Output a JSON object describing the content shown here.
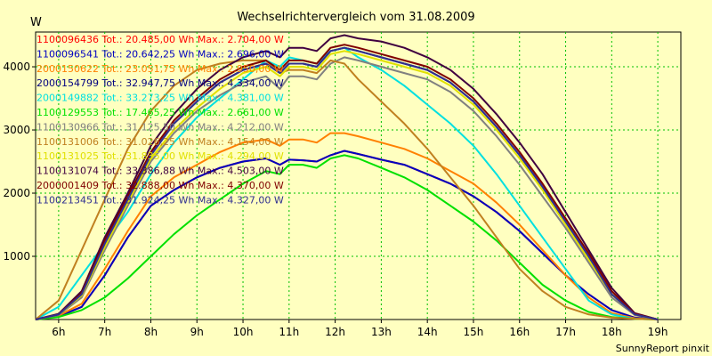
{
  "chart_data": {
    "type": "line",
    "title": "Wechselrichtervergleich vom 31.08.2009",
    "ylabel": "W",
    "xlabel": "",
    "footer": "SunnyReport pinxit",
    "x_ticks": [
      "6h",
      "7h",
      "8h",
      "9h",
      "10h",
      "11h",
      "12h",
      "13h",
      "14h",
      "15h",
      "16h",
      "17h",
      "18h",
      "19h"
    ],
    "y_ticks": [
      1000,
      2000,
      3000,
      4000
    ],
    "xlim": [
      5.5,
      19.5
    ],
    "ylim": [
      0,
      4550
    ],
    "grid": true,
    "legend_position": "top-left",
    "x": [
      5.5,
      6.0,
      6.5,
      7.0,
      7.5,
      8.0,
      8.5,
      9.0,
      9.5,
      10.0,
      10.5,
      10.8,
      11.0,
      11.3,
      11.6,
      11.9,
      12.2,
      12.5,
      13.0,
      13.5,
      14.0,
      14.5,
      15.0,
      15.5,
      16.0,
      16.5,
      17.0,
      17.5,
      18.0,
      18.5,
      19.0
    ],
    "series": [
      {
        "name": "1100096436 Tot.: 20.485,00 Wh Max.: 2.704,00 W",
        "color": "#FF0000",
        "values": [
          0,
          50,
          200,
          700,
          1300,
          1800,
          2050,
          2250,
          2400,
          2500,
          2550,
          2450,
          2530,
          2520,
          2500,
          2600,
          2670,
          2620,
          2530,
          2450,
          2300,
          2150,
          1950,
          1700,
          1400,
          1050,
          700,
          400,
          150,
          30,
          0
        ]
      },
      {
        "name": "1100096541 Tot.: 20.642,25 Wh Max.: 2.696,00 W",
        "color": "#0000C0",
        "values": [
          0,
          50,
          200,
          700,
          1300,
          1800,
          2050,
          2250,
          2400,
          2500,
          2550,
          2450,
          2530,
          2520,
          2500,
          2600,
          2670,
          2620,
          2530,
          2450,
          2300,
          2150,
          1950,
          1700,
          1400,
          1050,
          700,
          400,
          150,
          30,
          0
        ]
      },
      {
        "name": "2000150622 Tot.: 23.051,75 Wh Max.: 2.950,00 W",
        "color": "#FF8000",
        "values": [
          0,
          60,
          250,
          800,
          1400,
          1950,
          2250,
          2450,
          2650,
          2800,
          2850,
          2750,
          2850,
          2850,
          2800,
          2950,
          2950,
          2900,
          2800,
          2700,
          2550,
          2350,
          2150,
          1850,
          1500,
          1100,
          700,
          350,
          100,
          20,
          0
        ]
      },
      {
        "name": "2000154799 Tot.: 32.947,75 Wh Max.: 4.334,00 W",
        "color": "#000080",
        "values": [
          0,
          80,
          400,
          1200,
          1900,
          2600,
          3100,
          3450,
          3750,
          3950,
          4050,
          3900,
          4050,
          4050,
          4000,
          4250,
          4300,
          4250,
          4150,
          4050,
          3950,
          3750,
          3450,
          3050,
          2600,
          2100,
          1550,
          1000,
          400,
          80,
          0
        ]
      },
      {
        "name": "2000149882 Tot.: 33.273,25 Wh Max.: 4.381,00 W",
        "color": "#00E0E0",
        "values": [
          0,
          200,
          700,
          1200,
          1700,
          2300,
          2800,
          3200,
          3500,
          3800,
          4100,
          4000,
          4150,
          4100,
          4050,
          4250,
          4300,
          4150,
          3950,
          3700,
          3400,
          3100,
          2750,
          2300,
          1800,
          1300,
          800,
          300,
          80,
          10,
          0
        ]
      },
      {
        "name": "1100129553 Tot.: 17.465,25 Wh Max.: 2.661,00 W",
        "color": "#00E000",
        "values": [
          0,
          40,
          150,
          350,
          650,
          1000,
          1350,
          1650,
          1900,
          2150,
          2350,
          2300,
          2450,
          2450,
          2400,
          2550,
          2600,
          2550,
          2400,
          2250,
          2050,
          1800,
          1550,
          1250,
          900,
          550,
          300,
          120,
          40,
          10,
          0
        ]
      },
      {
        "name": "1100130966 Tot.: 31.125,50 Wh Max.: 4.212,00 W",
        "color": "#808080",
        "values": [
          0,
          70,
          350,
          1100,
          1800,
          2500,
          2950,
          3300,
          3550,
          3750,
          3850,
          3650,
          3850,
          3850,
          3800,
          4050,
          4150,
          4100,
          4000,
          3900,
          3800,
          3600,
          3300,
          2900,
          2450,
          1950,
          1450,
          900,
          350,
          70,
          0
        ]
      },
      {
        "name": "1100131006 Tot.: 31.026,25 Wh Max.: 4.154,00 W",
        "color": "#C08020",
        "values": [
          0,
          300,
          1100,
          1900,
          2700,
          3300,
          3700,
          3950,
          4050,
          4100,
          4100,
          3900,
          3950,
          3950,
          3900,
          4100,
          4050,
          3800,
          3450,
          3100,
          2700,
          2250,
          1800,
          1300,
          800,
          450,
          200,
          80,
          30,
          10,
          0
        ]
      },
      {
        "name": "1100131025 Tot.: 31.835,00 Wh Max.: 4.294,00 W",
        "color": "#E0E000",
        "values": [
          0,
          80,
          380,
          1150,
          1850,
          2550,
          3000,
          3350,
          3650,
          3900,
          4000,
          3850,
          4000,
          4000,
          3950,
          4200,
          4250,
          4200,
          4100,
          4000,
          3900,
          3700,
          3400,
          3000,
          2550,
          2050,
          1500,
          950,
          400,
          80,
          0
        ]
      },
      {
        "name": "1100131074 Tot.: 33.386,88 Wh Max.: 4.503,00 W",
        "color": "#400040",
        "values": [
          0,
          90,
          450,
          1300,
          2000,
          2750,
          3250,
          3650,
          3950,
          4150,
          4250,
          4150,
          4300,
          4300,
          4250,
          4450,
          4500,
          4450,
          4400,
          4300,
          4150,
          3950,
          3650,
          3250,
          2800,
          2300,
          1700,
          1100,
          500,
          100,
          0
        ]
      },
      {
        "name": "2000001409 Tot.: 32.888,00 Wh Max.: 4.370,00 W",
        "color": "#800000",
        "values": [
          0,
          80,
          420,
          1250,
          1950,
          2650,
          3150,
          3500,
          3800,
          4000,
          4100,
          3950,
          4100,
          4100,
          4050,
          4300,
          4350,
          4300,
          4200,
          4100,
          4000,
          3800,
          3500,
          3100,
          2650,
          2150,
          1600,
          1050,
          450,
          90,
          0
        ]
      },
      {
        "name": "1100213451 Tot.: 31.924,25 Wh Max.: 4.327,00 W",
        "color": "#303090",
        "values": [
          0,
          80,
          400,
          1200,
          1900,
          2600,
          3100,
          3450,
          3750,
          3950,
          4050,
          3900,
          4050,
          4050,
          4000,
          4250,
          4300,
          4250,
          4150,
          4050,
          3950,
          3750,
          3450,
          3050,
          2600,
          2100,
          1550,
          1000,
          400,
          80,
          0
        ]
      }
    ]
  }
}
